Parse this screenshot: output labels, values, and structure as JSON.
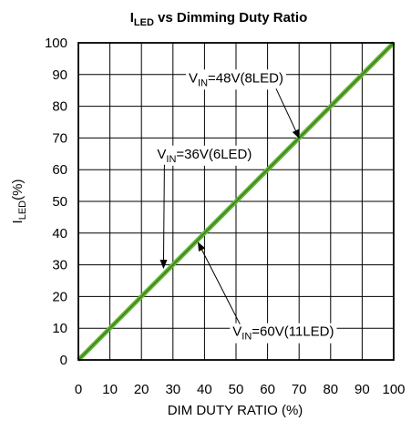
{
  "chart_data": {
    "type": "line",
    "title_main": "I",
    "title_sub": "LED",
    "title_rest": " vs Dimming Duty Ratio",
    "xlabel": "DIM DUTY RATIO (%)",
    "ylabel_main": "I",
    "ylabel_sub": "LED",
    "ylabel_rest": "(%)",
    "xlim": [
      0,
      100
    ],
    "ylim": [
      0,
      100
    ],
    "x_ticks": [
      "0",
      "10",
      "20",
      "30",
      "40",
      "50",
      "60",
      "70",
      "80",
      "90",
      "100"
    ],
    "y_ticks": [
      "0",
      "10",
      "20",
      "30",
      "40",
      "50",
      "60",
      "70",
      "80",
      "90",
      "100"
    ],
    "grid": true,
    "series": [
      {
        "name_main": "V",
        "name_sub": "IN",
        "name_rest": "=48V(8LED)",
        "x": [
          0,
          100
        ],
        "y": [
          0,
          100
        ],
        "color": "#6ab42f"
      },
      {
        "name_main": "V",
        "name_sub": "IN",
        "name_rest": "=36V(6LED)",
        "x": [
          0,
          100
        ],
        "y": [
          0,
          100
        ],
        "color": "#6ab42f"
      },
      {
        "name_main": "V",
        "name_sub": "IN",
        "name_rest": "=60V(11LED)",
        "x": [
          0,
          100
        ],
        "y": [
          0,
          100
        ],
        "color": "#2e7d32"
      }
    ],
    "annotations": [
      {
        "series": 0,
        "anchor_x": 50,
        "anchor_y": 89,
        "targets": [
          [
            70,
            70
          ]
        ]
      },
      {
        "series": 1,
        "anchor_x": 40,
        "anchor_y": 65,
        "targets": [
          [
            27,
            29
          ]
        ]
      },
      {
        "series": 2,
        "anchor_x": 65,
        "anchor_y": 9,
        "targets": [
          [
            38,
            37
          ]
        ]
      }
    ]
  }
}
